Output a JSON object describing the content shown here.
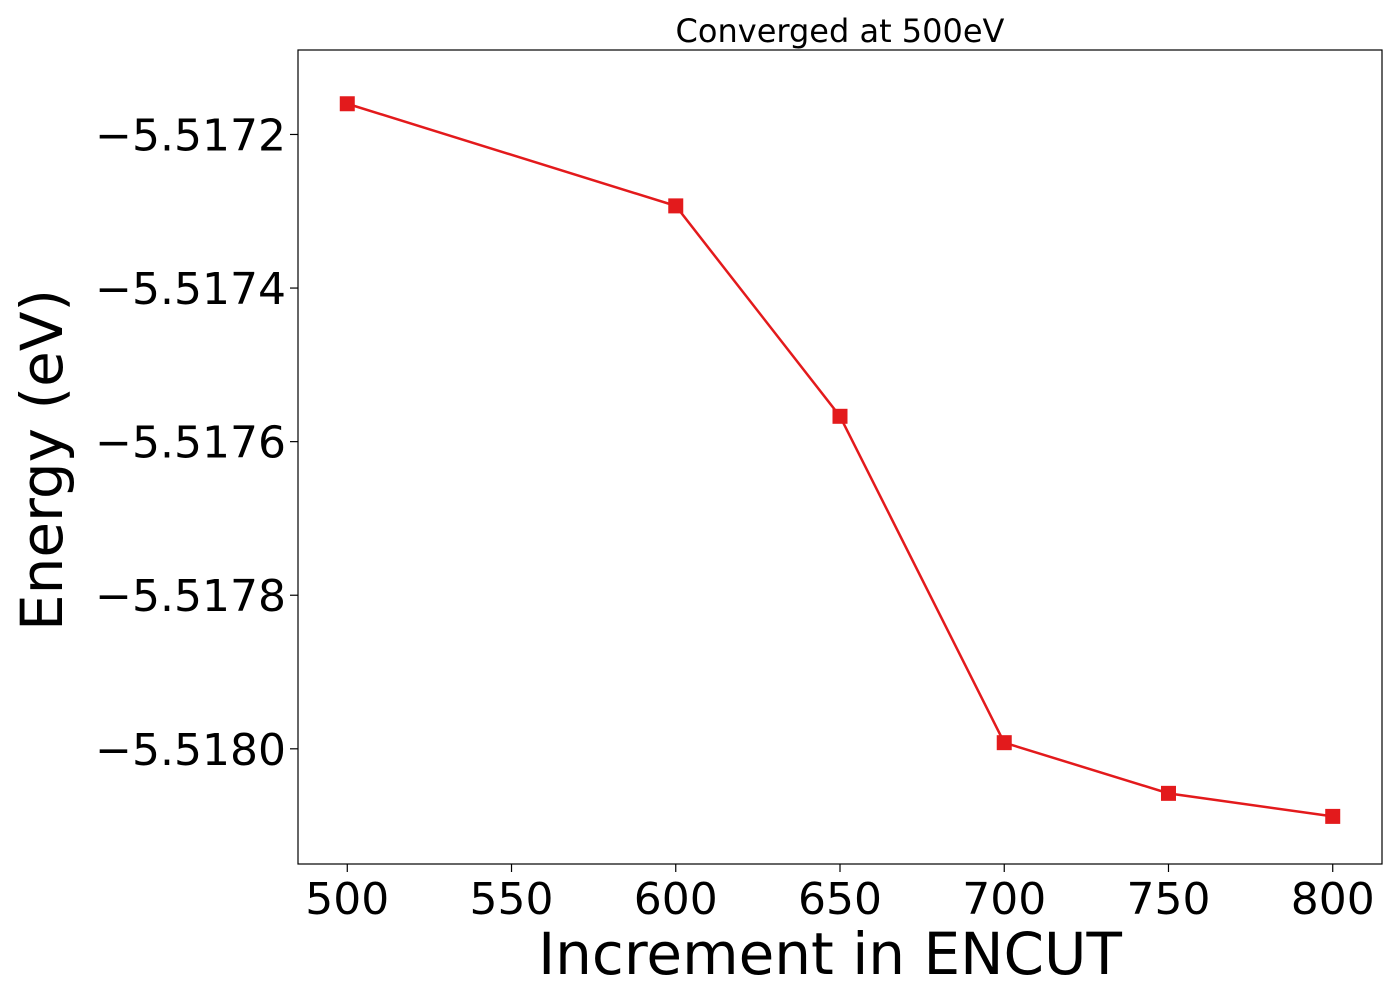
{
  "chart_data": {
    "type": "line",
    "title": "Converged at 500eV",
    "xlabel": "Increment in ENCUT",
    "ylabel": "Energy (eV)",
    "xlim": [
      485,
      815
    ],
    "ylim": [
      -5.51815,
      -5.51709
    ],
    "xticks": [
      500,
      550,
      600,
      650,
      700,
      750,
      800
    ],
    "xtick_labels": [
      "500",
      "550",
      "600",
      "650",
      "700",
      "750",
      "800"
    ],
    "yticks": [
      -5.5172,
      -5.5174,
      -5.5176,
      -5.5178,
      -5.518
    ],
    "ytick_labels": [
      "−5.5172",
      "−5.5174",
      "−5.5176",
      "−5.5178",
      "−5.5180"
    ],
    "grid": false,
    "series": [
      {
        "color": "#e31a1c",
        "marker": "square",
        "x": [
          500,
          600,
          650,
          700,
          750,
          800
        ],
        "y": [
          -5.51716,
          -5.517293,
          -5.517567,
          -5.517992,
          -5.518058,
          -5.518088
        ]
      }
    ]
  }
}
